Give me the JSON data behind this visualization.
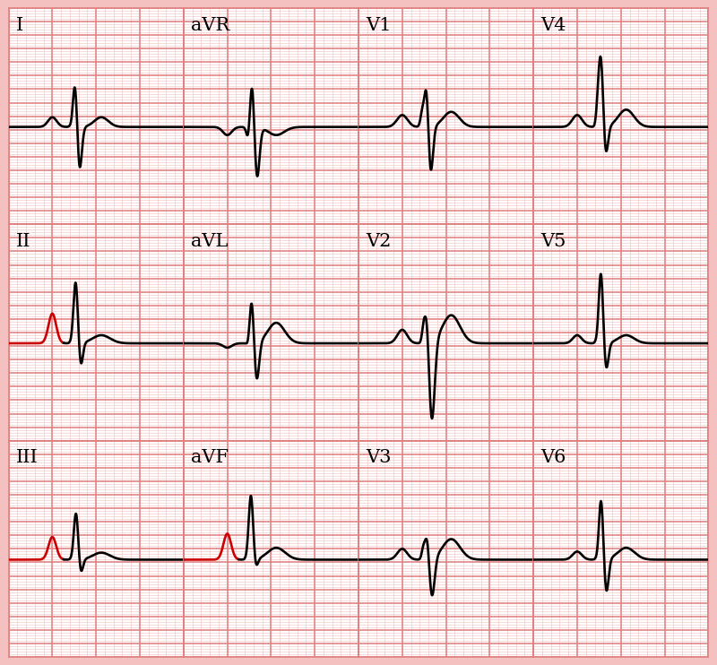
{
  "bg_color": "#ffffff",
  "outer_bg": "#f5c0c0",
  "grid_major_color": "#e08080",
  "grid_minor_color": "#f0c0c0",
  "trace_color": "#000000",
  "highlight_color": "#cc0000",
  "label_fontsize": 15,
  "highlight_leads": [
    "II",
    "III",
    "aVF"
  ],
  "leads_order": [
    "I",
    "aVR",
    "V1",
    "V4",
    "II",
    "aVL",
    "V2",
    "V5",
    "III",
    "aVF",
    "V3",
    "V6"
  ],
  "n_rows": 3,
  "n_cols": 4
}
